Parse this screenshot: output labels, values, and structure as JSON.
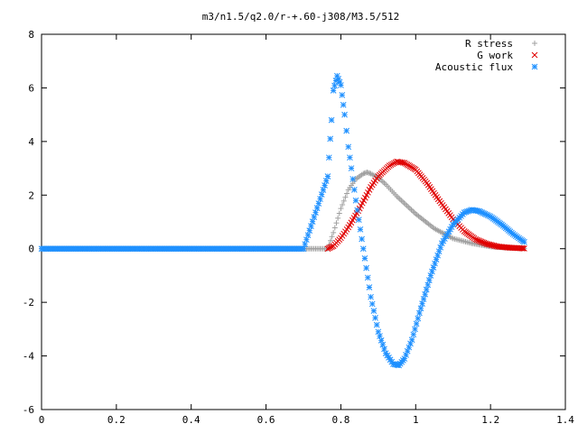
{
  "chart_data": {
    "type": "scatter",
    "title": "m3/n1.5/q2.0/r-+.60-j308/M3.5/512",
    "xlabel": "",
    "ylabel": "",
    "xlim": [
      0,
      1.4
    ],
    "ylim": [
      -6,
      8
    ],
    "xticks": [
      "0",
      "0.2",
      "0.4",
      "0.6",
      "0.8",
      "1",
      "1.2",
      "1.4"
    ],
    "yticks": [
      "-6",
      "-4",
      "-2",
      "0",
      "2",
      "4",
      "6",
      "8"
    ],
    "legend_position": "top-right",
    "grid": false,
    "series": [
      {
        "name": "R stress",
        "marker": "+",
        "color": "#a0a0a0",
        "x": [
          0.0,
          0.1,
          0.2,
          0.3,
          0.4,
          0.5,
          0.6,
          0.7,
          0.765,
          0.78,
          0.8,
          0.82,
          0.84,
          0.86,
          0.87,
          0.88,
          0.9,
          0.92,
          0.95,
          1.0,
          1.05,
          1.1,
          1.15,
          1.2,
          1.25,
          1.29
        ],
        "y": [
          0,
          0,
          0,
          0,
          0,
          0,
          0,
          0,
          0,
          0.6,
          1.5,
          2.2,
          2.6,
          2.8,
          2.85,
          2.8,
          2.65,
          2.4,
          1.95,
          1.3,
          0.75,
          0.38,
          0.2,
          0.08,
          0.03,
          0.01
        ]
      },
      {
        "name": "G work",
        "marker": "x",
        "color": "#e00000",
        "x": [
          0.765,
          0.78,
          0.8,
          0.82,
          0.85,
          0.88,
          0.9,
          0.93,
          0.95,
          0.97,
          1.0,
          1.03,
          1.06,
          1.1,
          1.13,
          1.16,
          1.19,
          1.22,
          1.25,
          1.28,
          1.29
        ],
        "y": [
          0,
          0.1,
          0.4,
          0.8,
          1.5,
          2.3,
          2.7,
          3.1,
          3.25,
          3.2,
          2.95,
          2.45,
          1.85,
          1.1,
          0.65,
          0.35,
          0.18,
          0.08,
          0.04,
          0.02,
          0.01
        ]
      },
      {
        "name": "Acoustic flux",
        "marker": "*",
        "color": "#1e90ff",
        "x": [
          0.0,
          0.1,
          0.2,
          0.3,
          0.4,
          0.5,
          0.6,
          0.7,
          0.765,
          0.775,
          0.78,
          0.79,
          0.8,
          0.81,
          0.82,
          0.84,
          0.86,
          0.88,
          0.9,
          0.92,
          0.94,
          0.955,
          0.97,
          0.99,
          1.01,
          1.04,
          1.07,
          1.1,
          1.13,
          1.15,
          1.17,
          1.2,
          1.23,
          1.26,
          1.28,
          1.29
        ],
        "y": [
          0,
          0,
          0,
          0,
          0,
          0,
          0,
          0,
          2.7,
          4.8,
          5.9,
          6.45,
          6.1,
          5.0,
          3.8,
          1.8,
          0.0,
          -1.8,
          -3.1,
          -3.9,
          -4.3,
          -4.35,
          -4.1,
          -3.4,
          -2.4,
          -1.0,
          0.2,
          0.9,
          1.35,
          1.45,
          1.4,
          1.2,
          0.9,
          0.55,
          0.35,
          0.25
        ]
      }
    ]
  }
}
